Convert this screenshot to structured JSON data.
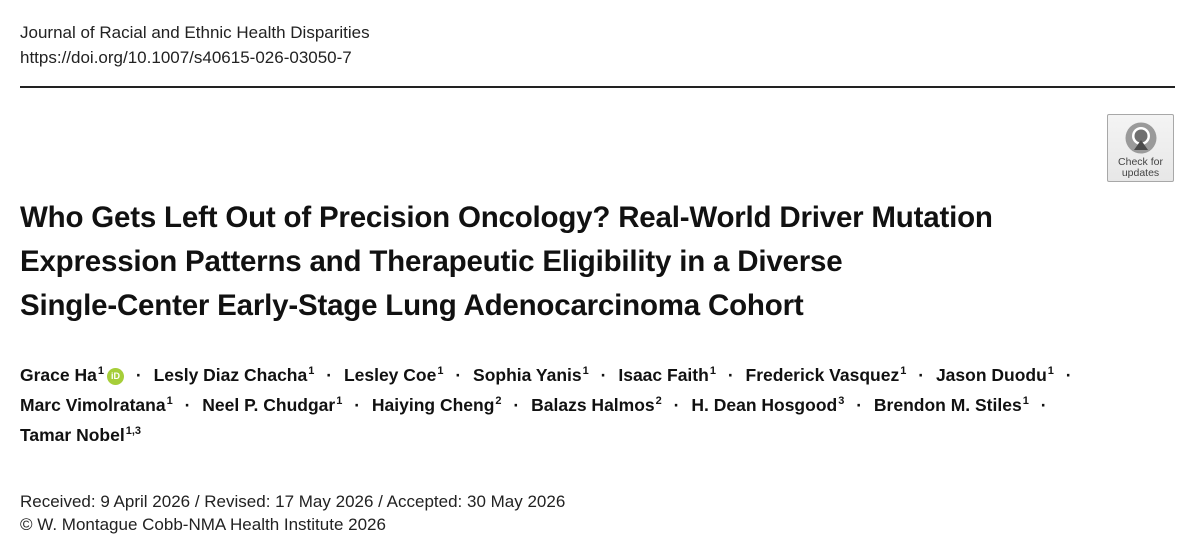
{
  "journal": {
    "name": "Journal of Racial and Ethnic Health Disparities",
    "doi": "https://doi.org/10.1007/s40615-026-03050-7"
  },
  "badge": {
    "line1": "Check for",
    "line2": "updates",
    "icon": "check-for-updates-icon"
  },
  "title": {
    "line1": "Who Gets Left Out of Precision Oncology? Real-World Driver Mutation",
    "line2": "Expression Patterns and Therapeutic Eligibility in a Diverse",
    "line3": "Single-Center Early-Stage Lung Adenocarcinoma Cohort"
  },
  "authors": [
    {
      "name": "Grace Ha",
      "aff": "1",
      "orcid": true
    },
    {
      "name": "Lesly Diaz Chacha",
      "aff": "1"
    },
    {
      "name": "Lesley Coe",
      "aff": "1"
    },
    {
      "name": "Sophia Yanis",
      "aff": "1"
    },
    {
      "name": "Isaac Faith",
      "aff": "1"
    },
    {
      "name": "Frederick Vasquez",
      "aff": "1"
    },
    {
      "name": "Jason Duodu",
      "aff": "1"
    },
    {
      "name": "Marc Vimolratana",
      "aff": "1"
    },
    {
      "name": "Neel P. Chudgar",
      "aff": "1"
    },
    {
      "name": "Haiying Cheng",
      "aff": "2"
    },
    {
      "name": "Balazs Halmos",
      "aff": "2"
    },
    {
      "name": "H. Dean Hosgood",
      "aff": "3"
    },
    {
      "name": "Brendon M. Stiles",
      "aff": "1"
    },
    {
      "name": "Tamar Nobel",
      "aff": "1,3"
    }
  ],
  "orcid_label": "iD",
  "separator": "·",
  "dates": {
    "history": "Received: 9 April 2026 / Revised: 17 May 2026 / Accepted: 30 May 2026",
    "copyright": "© W. Montague Cobb-NMA Health Institute 2026"
  },
  "colors": {
    "orcid_green": "#a6ce39",
    "rule": "#222222"
  }
}
